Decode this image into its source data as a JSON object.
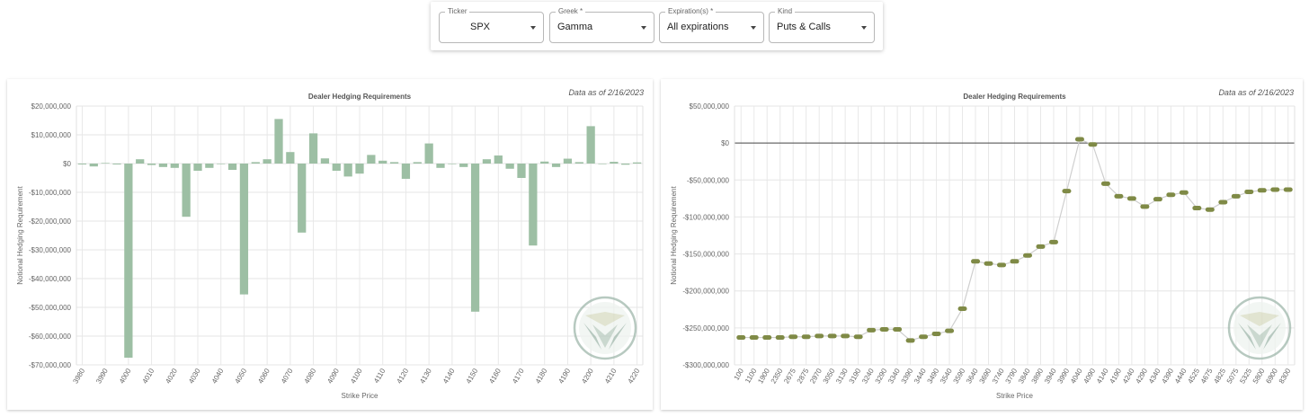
{
  "controls": [
    {
      "label": "Ticker",
      "value": "SPX"
    },
    {
      "label": "Greek *",
      "value": "Gamma"
    },
    {
      "label": "Expiration(s) *",
      "value": "All expirations"
    },
    {
      "label": "Kind",
      "value": "Puts & Calls"
    }
  ],
  "chart_data": [
    {
      "type": "bar",
      "title": "Dealer Hedging Requirements",
      "note": "Data as of 2/16/2023",
      "x_label": "Strike Price",
      "y_label": "Notional Hedging Requirement",
      "color": "#9dbfa4",
      "grid": true,
      "categories": [
        "3980",
        null,
        "3990",
        null,
        "4000",
        null,
        "4010",
        null,
        "4020",
        null,
        "4030",
        null,
        "4040",
        null,
        "4050",
        null,
        "4060",
        null,
        "4070",
        null,
        "4080",
        null,
        "4090",
        null,
        "4100",
        null,
        "4110",
        null,
        "4120",
        null,
        "4130",
        null,
        "4140",
        null,
        "4150",
        null,
        "4160",
        null,
        "4170",
        null,
        "4180",
        null,
        "4190",
        null,
        "4200",
        null,
        "4210",
        null,
        "4220"
      ],
      "values": [
        -300000,
        -1000000,
        200000,
        -300000,
        -67500000,
        1500000,
        -500000,
        -1200000,
        -1500000,
        -18500000,
        -2500000,
        -1500000,
        0,
        -2200000,
        -45500000,
        500000,
        1500000,
        15500000,
        4000000,
        -24000000,
        10500000,
        1800000,
        -2500000,
        -4500000,
        -3500000,
        3000000,
        1000000,
        500000,
        -5300000,
        500000,
        7000000,
        -1500000,
        0,
        -1200000,
        -51500000,
        1500000,
        2800000,
        -1800000,
        -5000000,
        -28500000,
        700000,
        -1200000,
        1700000,
        500000,
        13000000,
        0,
        600000,
        -400000,
        400000
      ],
      "ylim": [
        -70000000,
        20000000
      ],
      "yticks": [
        {
          "value": 20000000,
          "label": "$20,000,000"
        },
        {
          "value": 10000000,
          "label": "$10,000,000"
        },
        {
          "value": 0,
          "label": "$0"
        },
        {
          "value": -10000000,
          "label": "-$10,000,000"
        },
        {
          "value": -20000000,
          "label": "-$20,000,000"
        },
        {
          "value": -30000000,
          "label": "-$30,000,000"
        },
        {
          "value": -40000000,
          "label": "-$40,000,000"
        },
        {
          "value": -50000000,
          "label": "-$50,000,000"
        },
        {
          "value": -60000000,
          "label": "-$60,000,000"
        },
        {
          "value": -70000000,
          "label": "-$70,000,000"
        }
      ]
    },
    {
      "type": "line",
      "title": "Dealer Hedging Requirements",
      "note": "Data as of 2/16/2023",
      "x_label": "Strike Price",
      "y_label": "Notional Hedging Requirement",
      "color": "#7f8a46",
      "line_color": "#cfcfcf",
      "grid": true,
      "categories": [
        "100",
        "1100",
        "1900",
        "2350",
        "2675",
        "2875",
        "2970",
        "3050",
        "3130",
        "3190",
        "3240",
        "3290",
        "3340",
        "3390",
        "3440",
        "3490",
        "3540",
        "3590",
        "3640",
        "3690",
        "3740",
        "3790",
        "3840",
        "3890",
        "3940",
        "3990",
        "4040",
        "4090",
        "4140",
        "4190",
        "4240",
        "4290",
        "4340",
        "4390",
        "4440",
        "4525",
        "4675",
        "4825",
        "5075",
        "5325",
        "5800",
        "6900",
        "8300"
      ],
      "values": [
        -263000000,
        -263000000,
        -263000000,
        -263000000,
        -262000000,
        -262000000,
        -261000000,
        -261000000,
        -261000000,
        -262000000,
        -253000000,
        -252000000,
        -252000000,
        -267000000,
        -262000000,
        -258000000,
        -254000000,
        -224000000,
        -160000000,
        -163000000,
        -165000000,
        -160000000,
        -152000000,
        -140000000,
        -134000000,
        -65000000,
        5000000,
        -2000000,
        -55000000,
        -72000000,
        -75000000,
        -86000000,
        -76000000,
        -70000000,
        -67000000,
        -88000000,
        -90000000,
        -80000000,
        -72000000,
        -66000000,
        -64000000,
        -63000000,
        -63000000
      ],
      "ylim": [
        -300000000,
        50000000
      ],
      "yticks": [
        {
          "value": 50000000,
          "label": "$50,000,000"
        },
        {
          "value": 0,
          "label": "$0"
        },
        {
          "value": -50000000,
          "label": "-$50,000,000"
        },
        {
          "value": -100000000,
          "label": "-$100,000,000"
        },
        {
          "value": -150000000,
          "label": "-$150,000,000"
        },
        {
          "value": -200000000,
          "label": "-$200,000,000"
        },
        {
          "value": -250000000,
          "label": "-$250,000,000"
        },
        {
          "value": -300000000,
          "label": "-$300,000,000"
        }
      ]
    }
  ]
}
